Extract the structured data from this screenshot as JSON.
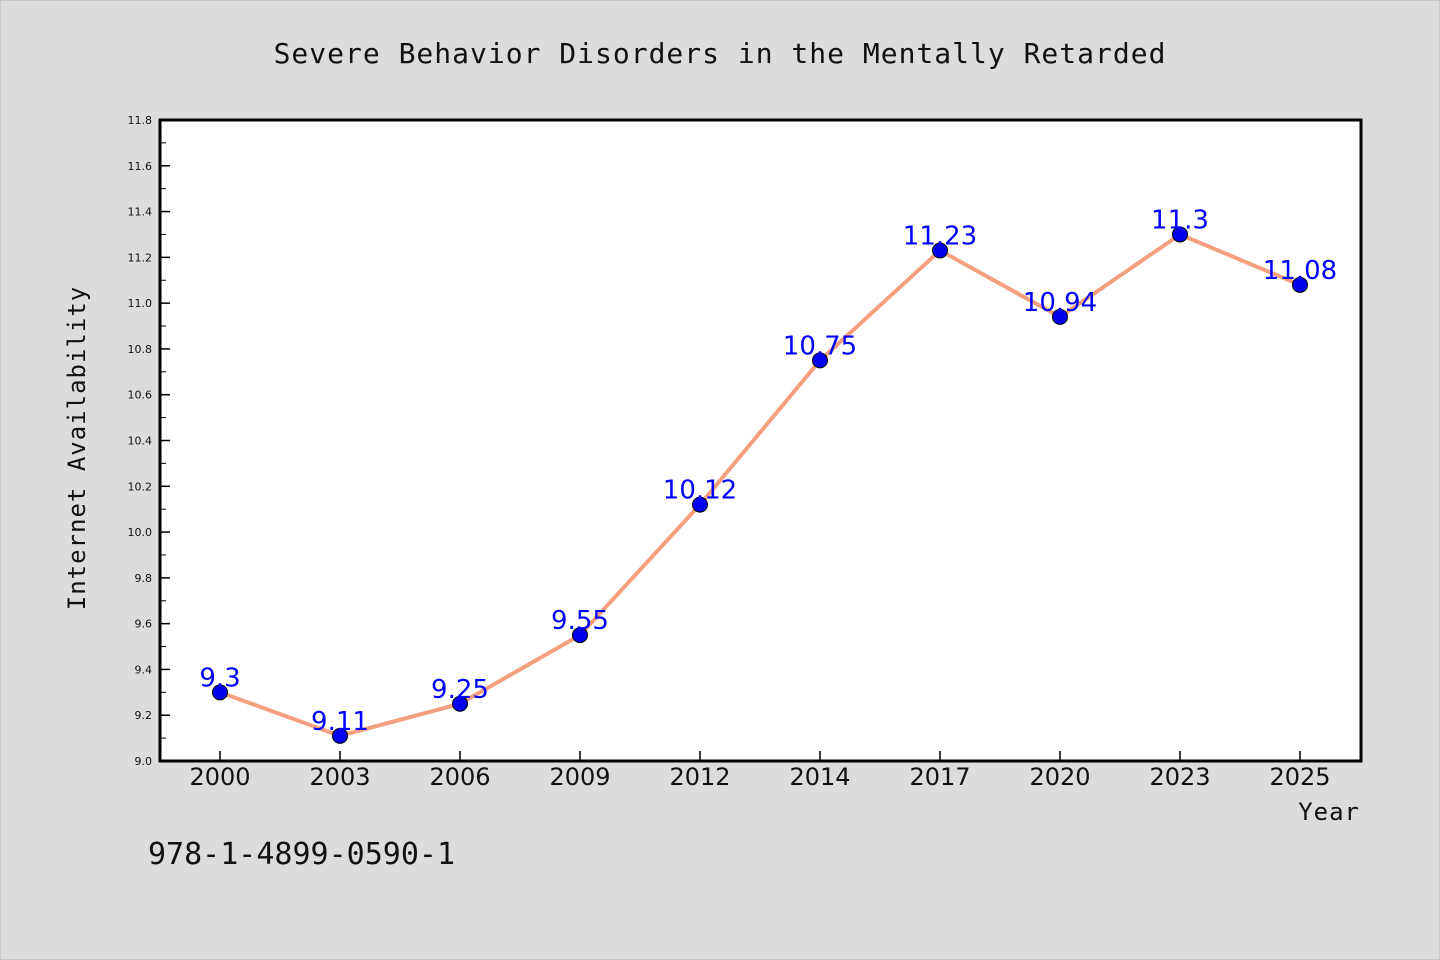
{
  "chart_data": {
    "type": "line",
    "title": "Severe Behavior Disorders in the Mentally Retarded",
    "xlabel": "Year",
    "ylabel": "Internet Availability",
    "categories": [
      "2000",
      "2003",
      "2006",
      "2009",
      "2012",
      "2014",
      "2017",
      "2020",
      "2023",
      "2025"
    ],
    "values": [
      9.3,
      9.11,
      9.25,
      9.55,
      10.12,
      10.75,
      11.23,
      10.94,
      11.3,
      11.08
    ],
    "data_labels": [
      "9.3",
      "9.11",
      "9.25",
      "9.55",
      "10.12",
      "10.75",
      "11.23",
      "10.94",
      "11.3",
      "11.08"
    ],
    "ylim": [
      9.0,
      11.8
    ],
    "yticks": [
      "9.0",
      "9.2",
      "9.4",
      "9.6",
      "9.8",
      "10.0",
      "10.2",
      "10.4",
      "10.6",
      "10.8",
      "11.0",
      "11.2",
      "11.4",
      "11.6",
      "11.8"
    ],
    "grid": false,
    "line_color": "#f4a07f",
    "marker_color": "#0000ee",
    "label_color": "#0000ff",
    "background_color": "#dcdcdc",
    "plot_background": "#ffffff"
  },
  "footer": {
    "isbn": "978-1-4899-0590-1"
  }
}
